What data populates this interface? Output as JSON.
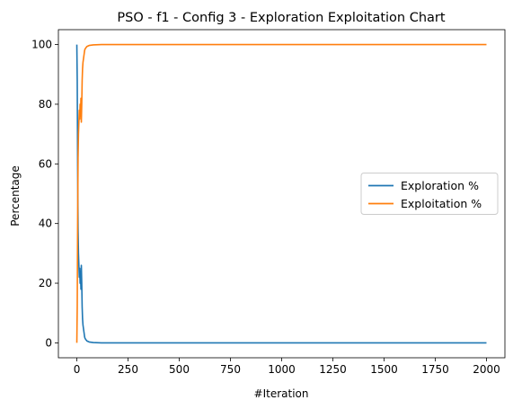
{
  "chart_data": {
    "type": "line",
    "title": "PSO - f1 - Config 3 - Exploration Exploitation Chart",
    "xlabel": "#Iteration",
    "ylabel": "Percentage",
    "xlim": [
      -90,
      2090
    ],
    "ylim": [
      -5,
      105
    ],
    "xticks": [
      0,
      250,
      500,
      750,
      1000,
      1250,
      1500,
      1750,
      2000
    ],
    "yticks": [
      0,
      20,
      40,
      60,
      80,
      100
    ],
    "grid": false,
    "legend_position": "center right",
    "series": [
      {
        "name": "Exploration %",
        "color": "#1f77b4",
        "points": [
          [
            0,
            100
          ],
          [
            2,
            88
          ],
          [
            4,
            58
          ],
          [
            6,
            38
          ],
          [
            8,
            30
          ],
          [
            10,
            26
          ],
          [
            12,
            22
          ],
          [
            14,
            25
          ],
          [
            16,
            20
          ],
          [
            18,
            24
          ],
          [
            20,
            18
          ],
          [
            22,
            26
          ],
          [
            24,
            20
          ],
          [
            26,
            12
          ],
          [
            28,
            8
          ],
          [
            30,
            6
          ],
          [
            32,
            5
          ],
          [
            34,
            4
          ],
          [
            36,
            3
          ],
          [
            38,
            2
          ],
          [
            40,
            1.5
          ],
          [
            45,
            1
          ],
          [
            50,
            0.6
          ],
          [
            60,
            0.3
          ],
          [
            80,
            0.1
          ],
          [
            120,
            0
          ],
          [
            2000,
            0
          ]
        ]
      },
      {
        "name": "Exploitation %",
        "color": "#ff7f0e",
        "points": [
          [
            0,
            0
          ],
          [
            2,
            12
          ],
          [
            4,
            42
          ],
          [
            6,
            62
          ],
          [
            8,
            70
          ],
          [
            10,
            74
          ],
          [
            12,
            78
          ],
          [
            14,
            75
          ],
          [
            16,
            80
          ],
          [
            18,
            76
          ],
          [
            20,
            82
          ],
          [
            22,
            74
          ],
          [
            24,
            80
          ],
          [
            26,
            88
          ],
          [
            28,
            92
          ],
          [
            30,
            94
          ],
          [
            32,
            95
          ],
          [
            34,
            96
          ],
          [
            36,
            97
          ],
          [
            38,
            98
          ],
          [
            40,
            98.5
          ],
          [
            45,
            99
          ],
          [
            50,
            99.4
          ],
          [
            60,
            99.7
          ],
          [
            80,
            99.9
          ],
          [
            120,
            100
          ],
          [
            2000,
            100
          ]
        ]
      }
    ]
  }
}
